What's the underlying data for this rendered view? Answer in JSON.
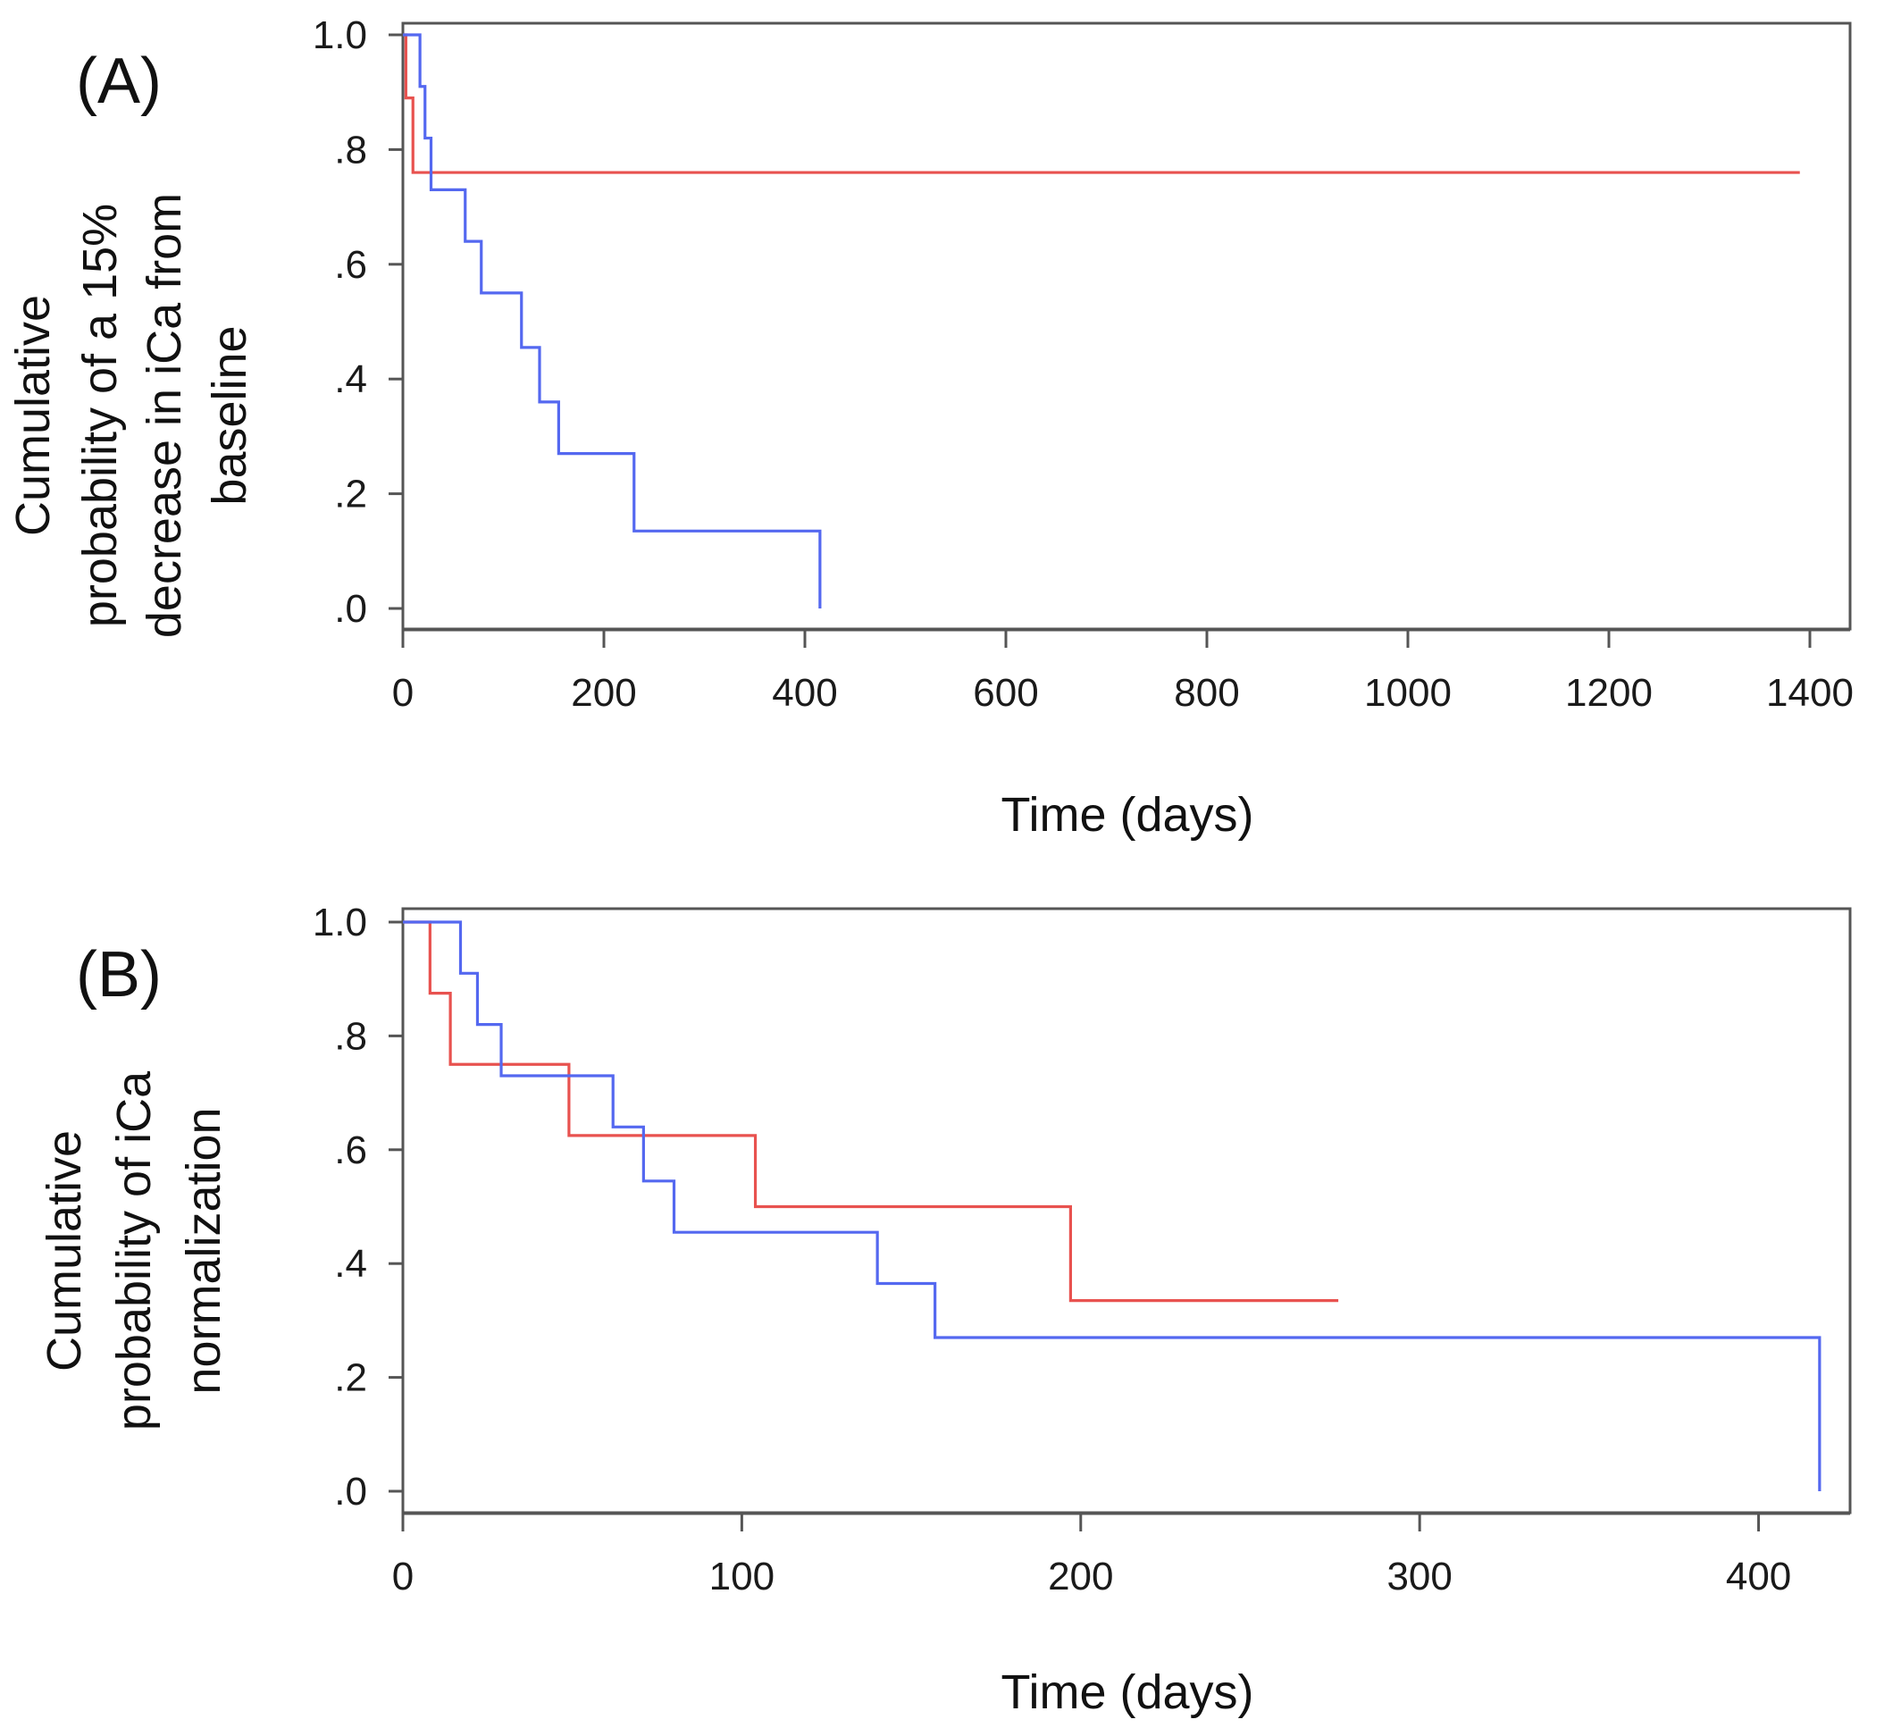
{
  "chart_data": [
    {
      "type": "line",
      "subtype": "step",
      "panel_label": "(A)",
      "title": "",
      "xlabel": "Time (days)",
      "ylabel_lines": [
        "Cumulative",
        "probability of a 15%",
        "decrease in iCa from",
        "baseline"
      ],
      "xlim": [
        0,
        1440
      ],
      "ylim": [
        0,
        1.0
      ],
      "x_ticks": [
        0,
        200,
        400,
        600,
        800,
        1000,
        1200,
        1400
      ],
      "y_ticks": [
        0.0,
        0.2,
        0.4,
        0.6,
        0.8,
        1.0
      ],
      "x_tick_labels": [
        "0",
        "200",
        "400",
        "600",
        "800",
        "1000",
        "1200",
        "1400"
      ],
      "y_tick_labels": [
        ".0",
        ".2",
        ".4",
        ".6",
        ".8",
        "1.0"
      ],
      "grid": false,
      "series": [
        {
          "color": "#e8524f",
          "x": [
            0,
            3,
            10,
            1390
          ],
          "y": [
            1.0,
            0.89,
            0.76,
            0.76
          ]
        },
        {
          "color": "#5468f0",
          "x": [
            0,
            17,
            22,
            28,
            62,
            78,
            118,
            136,
            155,
            230,
            415,
            415
          ],
          "y": [
            1.0,
            0.91,
            0.82,
            0.73,
            0.64,
            0.55,
            0.455,
            0.36,
            0.27,
            0.135,
            0.135,
            0.0
          ]
        }
      ]
    },
    {
      "type": "line",
      "subtype": "step",
      "panel_label": "(B)",
      "title": "",
      "xlabel": "Time (days)",
      "ylabel_lines": [
        "Cumulative",
        "probability of iCa",
        "normalization"
      ],
      "xlim": [
        0,
        427
      ],
      "ylim": [
        0,
        1.0
      ],
      "x_ticks": [
        0,
        100,
        200,
        300,
        400
      ],
      "y_ticks": [
        0.0,
        0.2,
        0.4,
        0.6,
        0.8,
        1.0
      ],
      "x_tick_labels": [
        "0",
        "100",
        "200",
        "300",
        "400"
      ],
      "y_tick_labels": [
        ".0",
        ".2",
        ".4",
        ".6",
        ".8",
        "1.0"
      ],
      "grid": false,
      "series": [
        {
          "color": "#e8524f",
          "x": [
            0,
            8,
            14,
            49,
            104,
            197,
            276
          ],
          "y": [
            1.0,
            0.875,
            0.75,
            0.625,
            0.5,
            0.335,
            0.335
          ]
        },
        {
          "color": "#5468f0",
          "x": [
            0,
            17,
            22,
            29,
            62,
            71,
            80,
            140,
            157,
            418,
            418
          ],
          "y": [
            1.0,
            0.91,
            0.82,
            0.73,
            0.64,
            0.545,
            0.455,
            0.365,
            0.27,
            0.27,
            0.0
          ]
        }
      ]
    }
  ]
}
